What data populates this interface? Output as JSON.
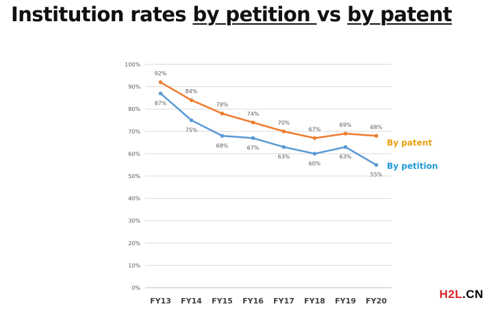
{
  "title": {
    "part1": "Institution rates ",
    "part2": "by petition ",
    "part3": "vs ",
    "part4": "by patent"
  },
  "watermark": {
    "h2l": "H2L",
    "cn": ".CN",
    "h2l_color": "#d9252a",
    "cn_color": "#000000"
  },
  "chart_data": {
    "type": "line",
    "categories": [
      "FY13",
      "FY14",
      "FY15",
      "FY16",
      "FY17",
      "FY18",
      "FY19",
      "FY20"
    ],
    "ylim": [
      0,
      100
    ],
    "yticks": [
      "0%",
      "10%",
      "20%",
      "30%",
      "40%",
      "50%",
      "60%",
      "70%",
      "80%",
      "90%",
      "100%"
    ],
    "grid": true,
    "series": [
      {
        "name": "By patent",
        "color": "#ed7d31",
        "label_color": "#e8a10c",
        "values": [
          92,
          84,
          78,
          74,
          70,
          67,
          69,
          68
        ],
        "data_labels": [
          "92%",
          "84%",
          "78%",
          "74%",
          "70%",
          "67%",
          "69%",
          "68%"
        ],
        "label_position": "above"
      },
      {
        "name": "By petition",
        "color": "#5b9bd5",
        "label_color": "#1e9ad6",
        "values": [
          87,
          75,
          68,
          67,
          63,
          60,
          63,
          55
        ],
        "data_labels": [
          "87%",
          "75%",
          "68%",
          "67%",
          "63%",
          "60%",
          "63%",
          "55%"
        ],
        "label_position": "below"
      }
    ]
  }
}
